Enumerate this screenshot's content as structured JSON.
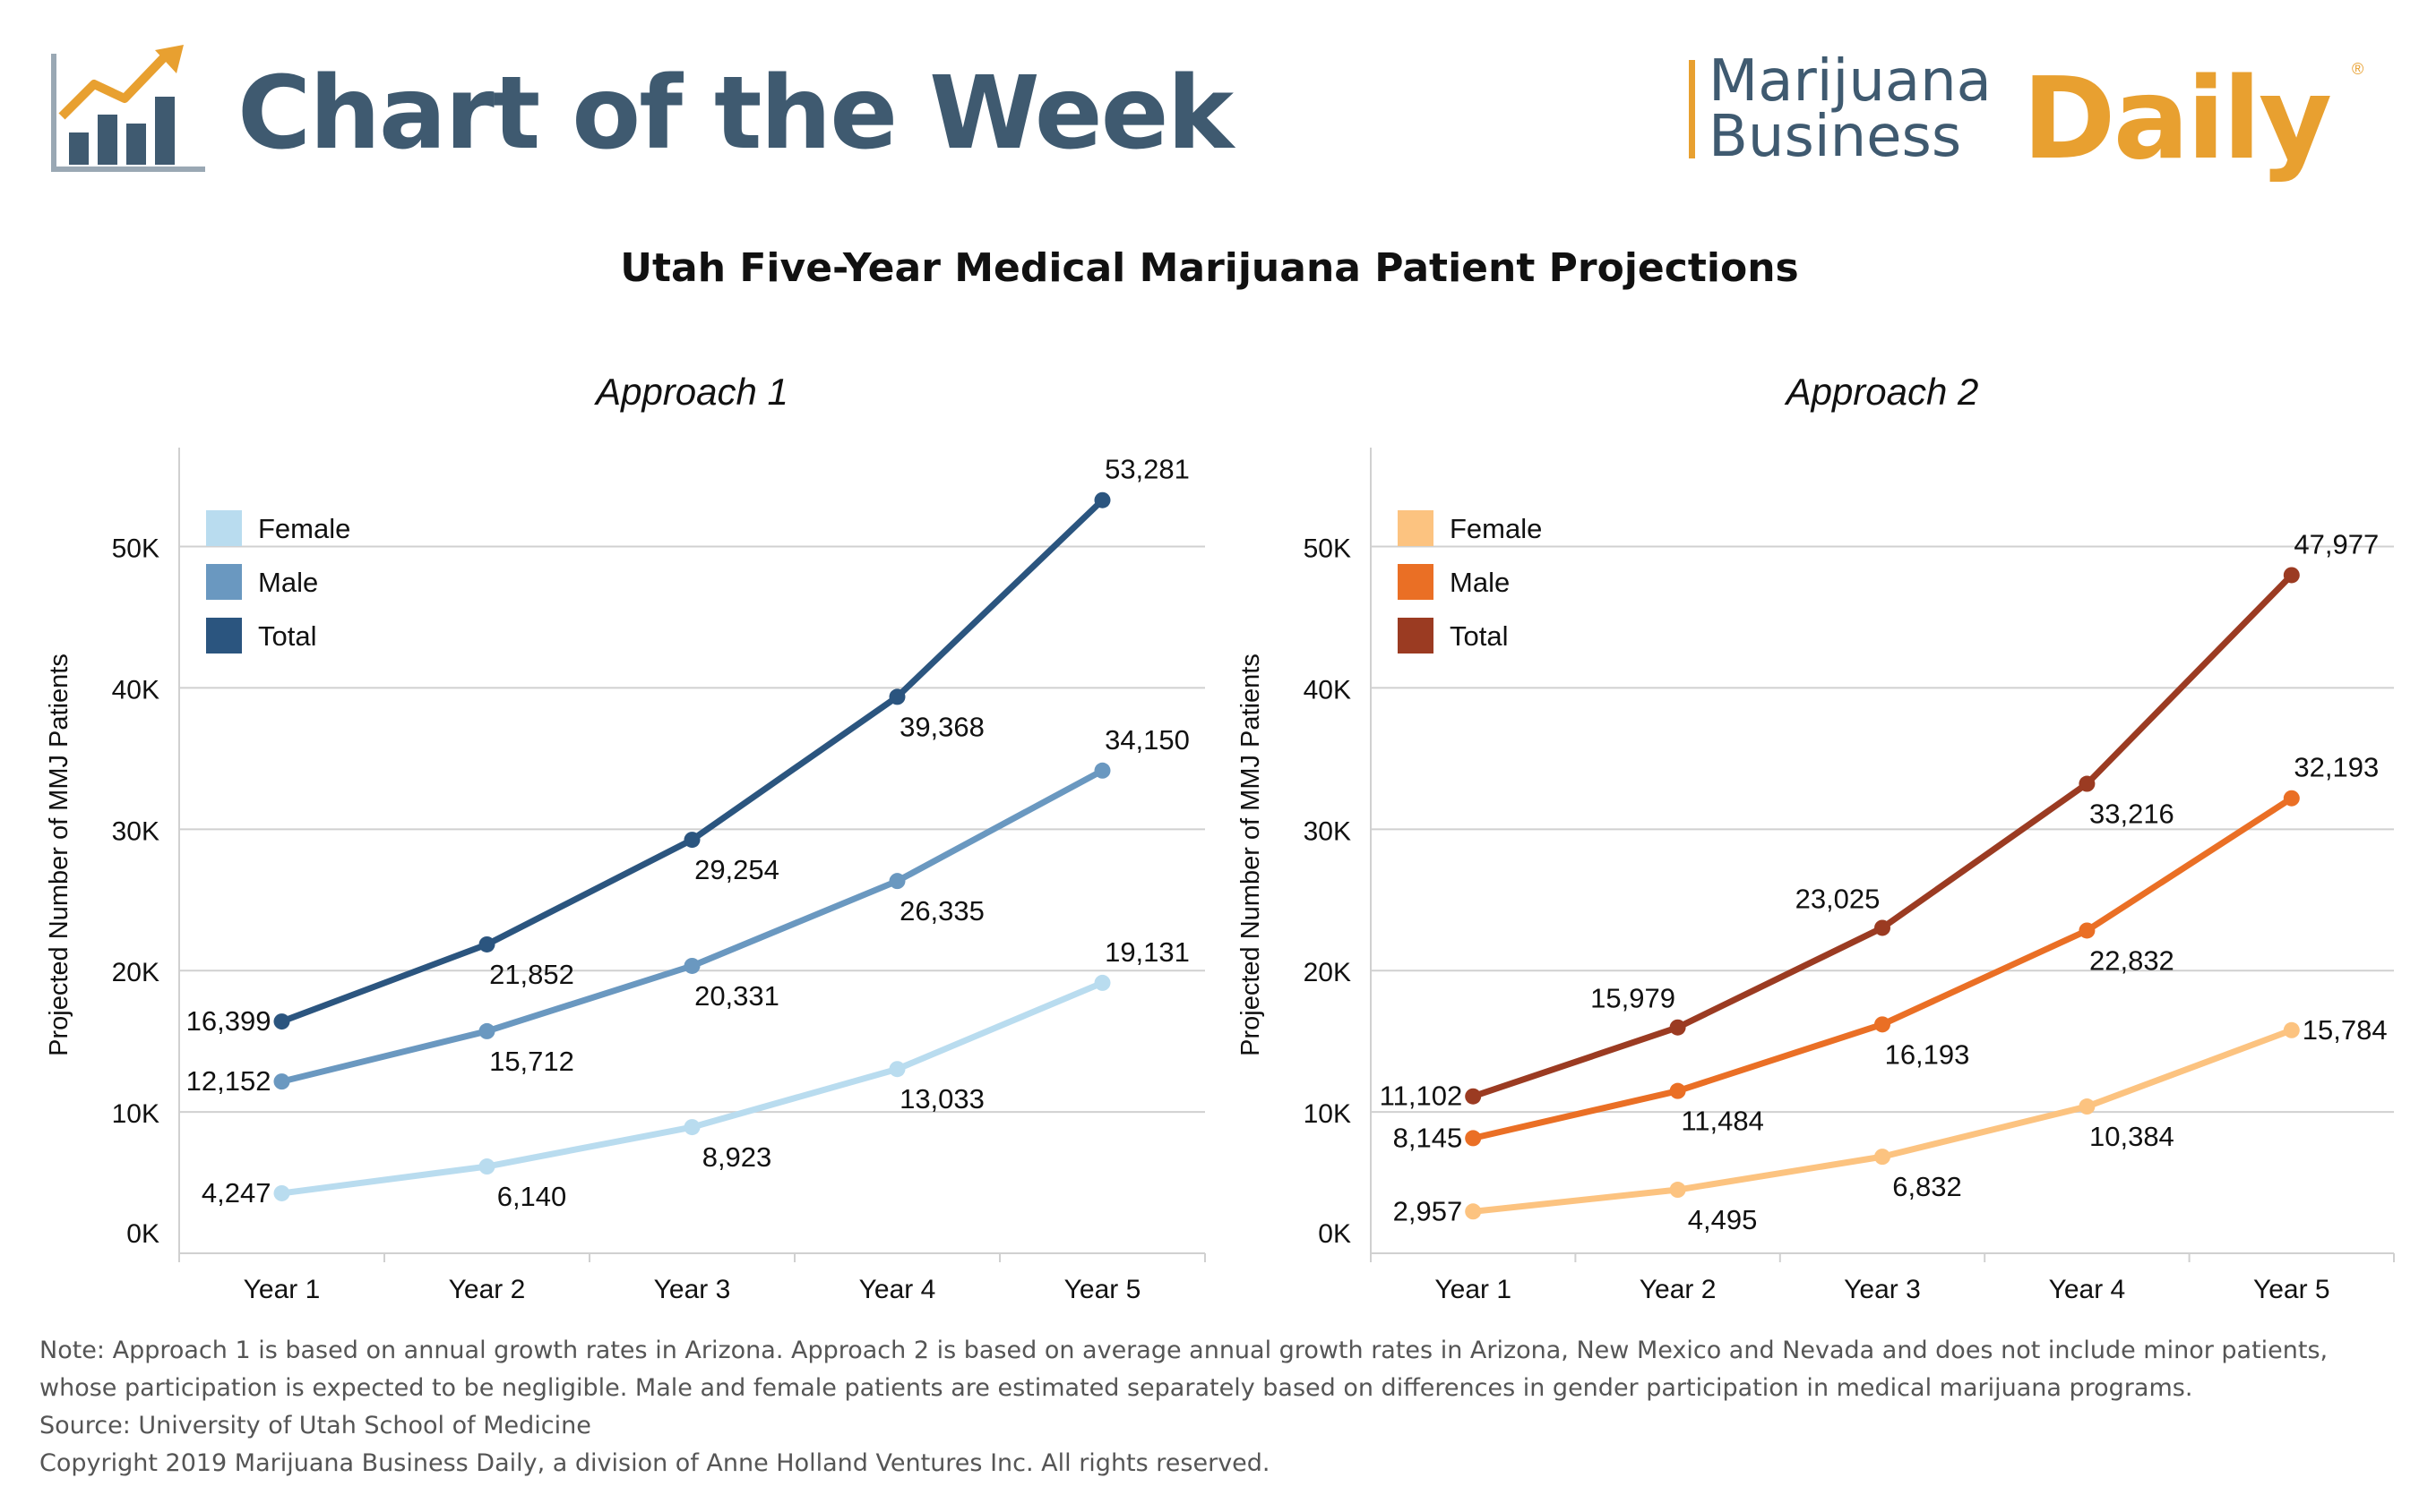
{
  "header": {
    "title": "Chart of the Week",
    "brand": {
      "line1": "Marijuana",
      "line2": "Business",
      "line3": "Daily",
      "reg": "®"
    }
  },
  "main_title": "Utah Five-Year Medical Marijuana Patient Projections",
  "colors": {
    "header_blue": "#3f5a70",
    "brand_orange": "#e8a030",
    "approach1": {
      "Female": "#b9dcef",
      "Male": "#6a98c0",
      "Total": "#2b557f"
    },
    "approach2": {
      "Female": "#fcc380",
      "Male": "#ea6f25",
      "Total": "#9b3b22"
    }
  },
  "chart_data": [
    {
      "type": "line",
      "title": "Approach 1",
      "ylabel": "Projected Number of MMJ Patients",
      "xlabel": "",
      "categories": [
        "Year 1",
        "Year 2",
        "Year 3",
        "Year 4",
        "Year 5"
      ],
      "ylim": [
        0,
        57000
      ],
      "yticks": [
        0,
        10000,
        20000,
        30000,
        40000,
        50000
      ],
      "yticklabels": [
        "0K",
        "10K",
        "20K",
        "30K",
        "40K",
        "50K"
      ],
      "grid": true,
      "legend": "top-left",
      "series": [
        {
          "name": "Female",
          "values": [
            4247,
            6140,
            8923,
            13033,
            19131
          ],
          "labels": [
            "4,247",
            "6,140",
            "8,923",
            "13,033",
            "19,131"
          ]
        },
        {
          "name": "Male",
          "values": [
            12152,
            15712,
            20331,
            26335,
            34150
          ],
          "labels": [
            "12,152",
            "15,712",
            "20,331",
            "26,335",
            "34,150"
          ]
        },
        {
          "name": "Total",
          "values": [
            16399,
            21852,
            29254,
            39368,
            53281
          ],
          "labels": [
            "16,399",
            "21,852",
            "29,254",
            "39,368",
            "53,281"
          ]
        }
      ]
    },
    {
      "type": "line",
      "title": "Approach 2",
      "ylabel": "Projected Number of MMJ Patients",
      "xlabel": "",
      "categories": [
        "Year 1",
        "Year 2",
        "Year 3",
        "Year 4",
        "Year 5"
      ],
      "ylim": [
        0,
        57000
      ],
      "yticks": [
        0,
        10000,
        20000,
        30000,
        40000,
        50000
      ],
      "yticklabels": [
        "0K",
        "10K",
        "20K",
        "30K",
        "40K",
        "50K"
      ],
      "grid": true,
      "legend": "top-left",
      "series": [
        {
          "name": "Female",
          "values": [
            2957,
            4495,
            6832,
            10384,
            15784
          ],
          "labels": [
            "2,957",
            "4,495",
            "6,832",
            "10,384",
            "15,784"
          ]
        },
        {
          "name": "Male",
          "values": [
            8145,
            11484,
            16193,
            22832,
            32193
          ],
          "labels": [
            "8,145",
            "11,484",
            "16,193",
            "22,832",
            "32,193"
          ]
        },
        {
          "name": "Total",
          "values": [
            11102,
            15979,
            23025,
            33216,
            47977
          ],
          "labels": [
            "11,102",
            "15,979",
            "23,025",
            "33,216",
            "47,977"
          ]
        }
      ]
    }
  ],
  "notes": {
    "note": "Note: Approach 1 is based on annual growth rates in Arizona. Approach 2 is based on average annual growth rates in Arizona, New Mexico and Nevada and does not include minor patients, whose participation is expected to be negligible. Male and female patients are estimated separately based on differences in gender participation in medical marijuana programs.",
    "source": "Source: University of Utah School of Medicine",
    "copyright": "Copyright 2019 Marijuana Business Daily, a division of Anne Holland Ventures Inc. All rights reserved."
  }
}
